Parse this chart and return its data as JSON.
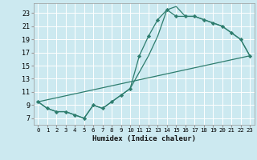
{
  "xlabel": "Humidex (Indice chaleur)",
  "bg_color": "#cce9f0",
  "grid_color": "#ffffff",
  "line_color": "#2e7d6e",
  "xlim": [
    -0.5,
    23.5
  ],
  "ylim": [
    6.0,
    24.5
  ],
  "xticks": [
    0,
    1,
    2,
    3,
    4,
    5,
    6,
    7,
    8,
    9,
    10,
    11,
    12,
    13,
    14,
    15,
    16,
    17,
    18,
    19,
    20,
    21,
    22,
    23
  ],
  "yticks": [
    7,
    9,
    11,
    13,
    15,
    17,
    19,
    21,
    23
  ],
  "line1_x": [
    0,
    1,
    2,
    3,
    4,
    5,
    6,
    7,
    8,
    9,
    10,
    11,
    12,
    13,
    14,
    15,
    16,
    17,
    18,
    19,
    20,
    21,
    22,
    23
  ],
  "line1_y": [
    9.5,
    8.5,
    8.0,
    8.0,
    7.5,
    7.0,
    9.0,
    8.5,
    9.5,
    10.5,
    11.5,
    16.5,
    19.5,
    22.0,
    23.5,
    22.5,
    22.5,
    22.5,
    22.0,
    21.5,
    21.0,
    20.0,
    19.0,
    16.5
  ],
  "line2_x": [
    0,
    1,
    2,
    3,
    4,
    5,
    6,
    7,
    8,
    9,
    10,
    11,
    12,
    13,
    14,
    15,
    16,
    17,
    18,
    19,
    20,
    21,
    22,
    23
  ],
  "line2_y": [
    9.5,
    8.5,
    8.0,
    8.0,
    7.5,
    7.0,
    9.0,
    8.5,
    9.5,
    10.5,
    11.5,
    14.0,
    16.5,
    19.5,
    23.5,
    24.0,
    22.5,
    22.5,
    22.0,
    21.5,
    21.0,
    20.0,
    19.0,
    16.5
  ],
  "line3_x": [
    0,
    23
  ],
  "line3_y": [
    9.5,
    16.5
  ]
}
